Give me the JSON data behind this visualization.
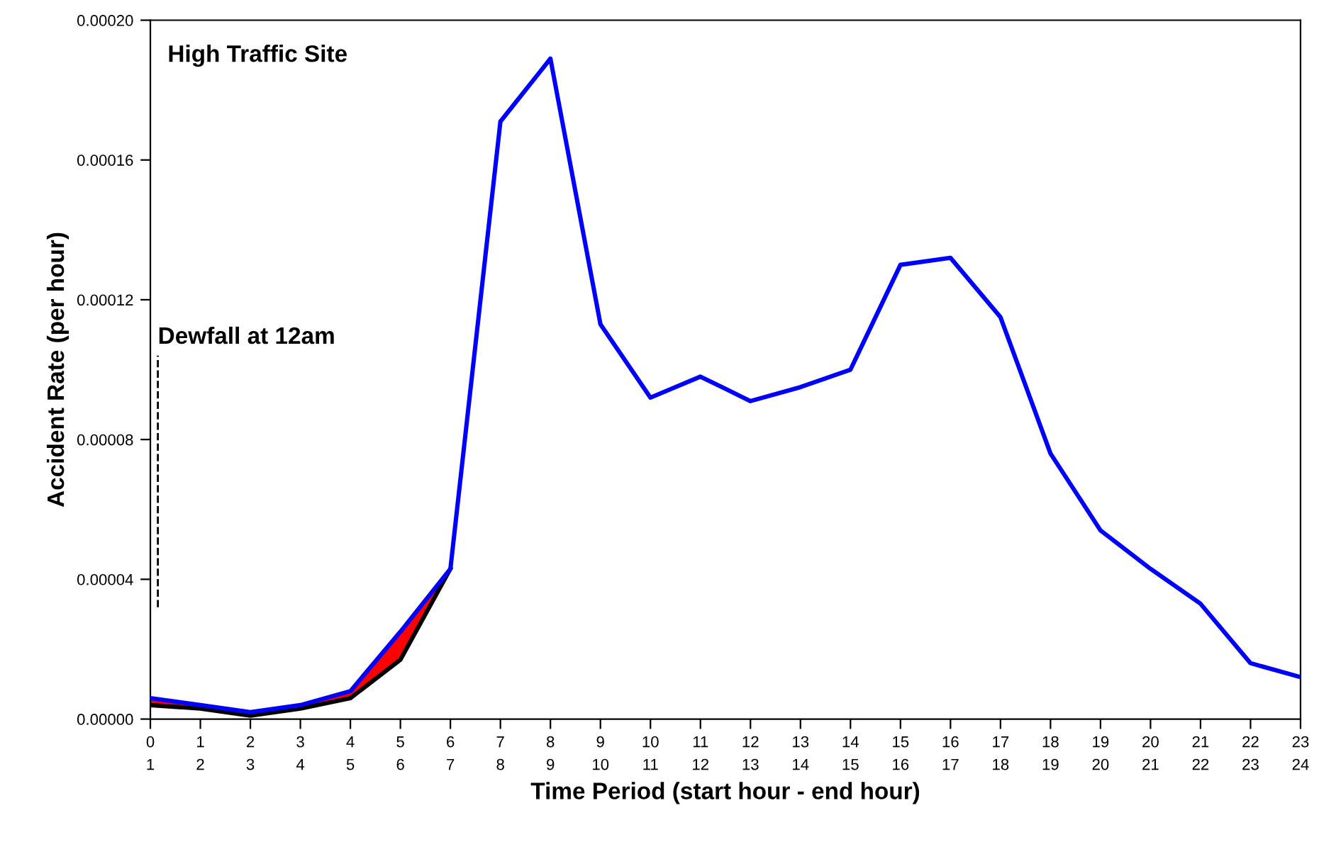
{
  "chart_data": {
    "type": "line",
    "xlabel": "Time Period (start hour - end hour)",
    "ylabel": "Accident Rate (per hour)",
    "annotations": [
      "High Traffic Site"
    ],
    "x": [
      0,
      1,
      2,
      3,
      4,
      5,
      6,
      7,
      8,
      9,
      10,
      11,
      12,
      13,
      14,
      15,
      16,
      17,
      18,
      19,
      20,
      21,
      22,
      23
    ],
    "series": [
      {
        "color": "#000000",
        "x": [
          0,
          1,
          2,
          3,
          4,
          5,
          6
        ],
        "values": [
          4e-06,
          3e-06,
          1e-06,
          3e-06,
          6e-06,
          1.7e-05,
          4.3e-05
        ],
        "lower": [
          4e-06,
          3e-06,
          1e-06,
          3e-06,
          6e-06,
          1.7e-05,
          4.3e-05
        ],
        "upper": [
          6e-06,
          4e-06,
          2e-06,
          4e-06,
          8e-06,
          2.5e-05,
          4.3e-05
        ]
      },
      {
        "color": "#0000ff",
        "values": [
          6e-06,
          4e-06,
          2e-06,
          4e-06,
          8e-06,
          2.5e-05,
          4.3e-05,
          0.000171,
          0.000189,
          0.000113,
          9.2e-05,
          9.8e-05,
          9.1e-05,
          9.5e-05,
          0.0001,
          0.00013,
          0.000132,
          0.000115,
          7.6e-05,
          5.4e-05,
          4.3e-05,
          3.3e-05,
          1.6e-05,
          1.2e-05
        ]
      }
    ],
    "ref_lines": [
      {
        "axis": "x",
        "value": 0.15,
        "label": "Dewfall at 12am",
        "color": "#000000",
        "line_style": "dashed"
      }
    ],
    "xlim": [
      0,
      23
    ],
    "xticks": [
      0,
      1,
      2,
      3,
      4,
      5,
      6,
      7,
      8,
      9,
      10,
      11,
      12,
      13,
      14,
      15,
      16,
      17,
      18,
      19,
      20,
      21,
      22,
      23
    ],
    "x2lim": [
      1,
      24
    ],
    "x2ticks": [
      1,
      2,
      3,
      4,
      5,
      6,
      7,
      8,
      9,
      10,
      11,
      12,
      13,
      14,
      15,
      16,
      17,
      18,
      19,
      20,
      21,
      22,
      23,
      24
    ],
    "ylim": [
      0,
      0.0002
    ],
    "yticks": [
      {
        "value": 0,
        "label": "0.00000"
      },
      {
        "value": 4e-05,
        "label": "0.00004"
      },
      {
        "value": 8e-05,
        "label": "0.00008"
      },
      {
        "value": 0.00012,
        "label": "0.00012"
      },
      {
        "value": 0.00016,
        "label": "0.00016"
      },
      {
        "value": 0.0002,
        "label": "0.00020"
      }
    ],
    "grid": false,
    "marker": "none",
    "line_style": "solid"
  }
}
